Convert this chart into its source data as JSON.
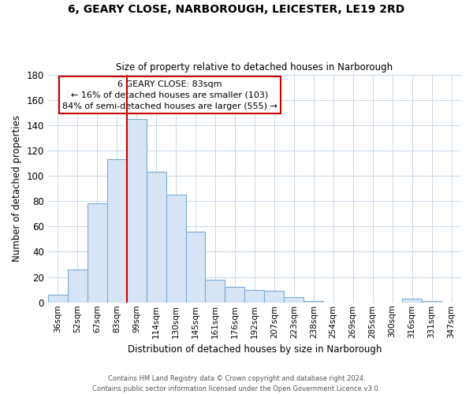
{
  "title": "6, GEARY CLOSE, NARBOROUGH, LEICESTER, LE19 2RD",
  "subtitle": "Size of property relative to detached houses in Narborough",
  "xlabel": "Distribution of detached houses by size in Narborough",
  "ylabel": "Number of detached properties",
  "bar_labels": [
    "36sqm",
    "52sqm",
    "67sqm",
    "83sqm",
    "99sqm",
    "114sqm",
    "130sqm",
    "145sqm",
    "161sqm",
    "176sqm",
    "192sqm",
    "207sqm",
    "223sqm",
    "238sqm",
    "254sqm",
    "269sqm",
    "285sqm",
    "300sqm",
    "316sqm",
    "331sqm",
    "347sqm"
  ],
  "bar_values": [
    6,
    26,
    78,
    113,
    145,
    103,
    85,
    56,
    18,
    12,
    10,
    9,
    4,
    1,
    0,
    0,
    0,
    0,
    3,
    1,
    0
  ],
  "bar_color": "#d6e4f5",
  "bar_edge_color": "#7aadd4",
  "vline_color": "#cc0000",
  "ylim": [
    0,
    180
  ],
  "yticks": [
    0,
    20,
    40,
    60,
    80,
    100,
    120,
    140,
    160,
    180
  ],
  "annotation_title": "6 GEARY CLOSE: 83sqm",
  "annotation_line1": "← 16% of detached houses are smaller (103)",
  "annotation_line2": "84% of semi-detached houses are larger (555) →",
  "annotation_box_color": "#ffffff",
  "annotation_box_edge": "#cc0000",
  "footer_line1": "Contains HM Land Registry data © Crown copyright and database right 2024.",
  "footer_line2": "Contains public sector information licensed under the Open Government Licence v3.0.",
  "background_color": "#ffffff",
  "grid_color": "#c8d8e8"
}
